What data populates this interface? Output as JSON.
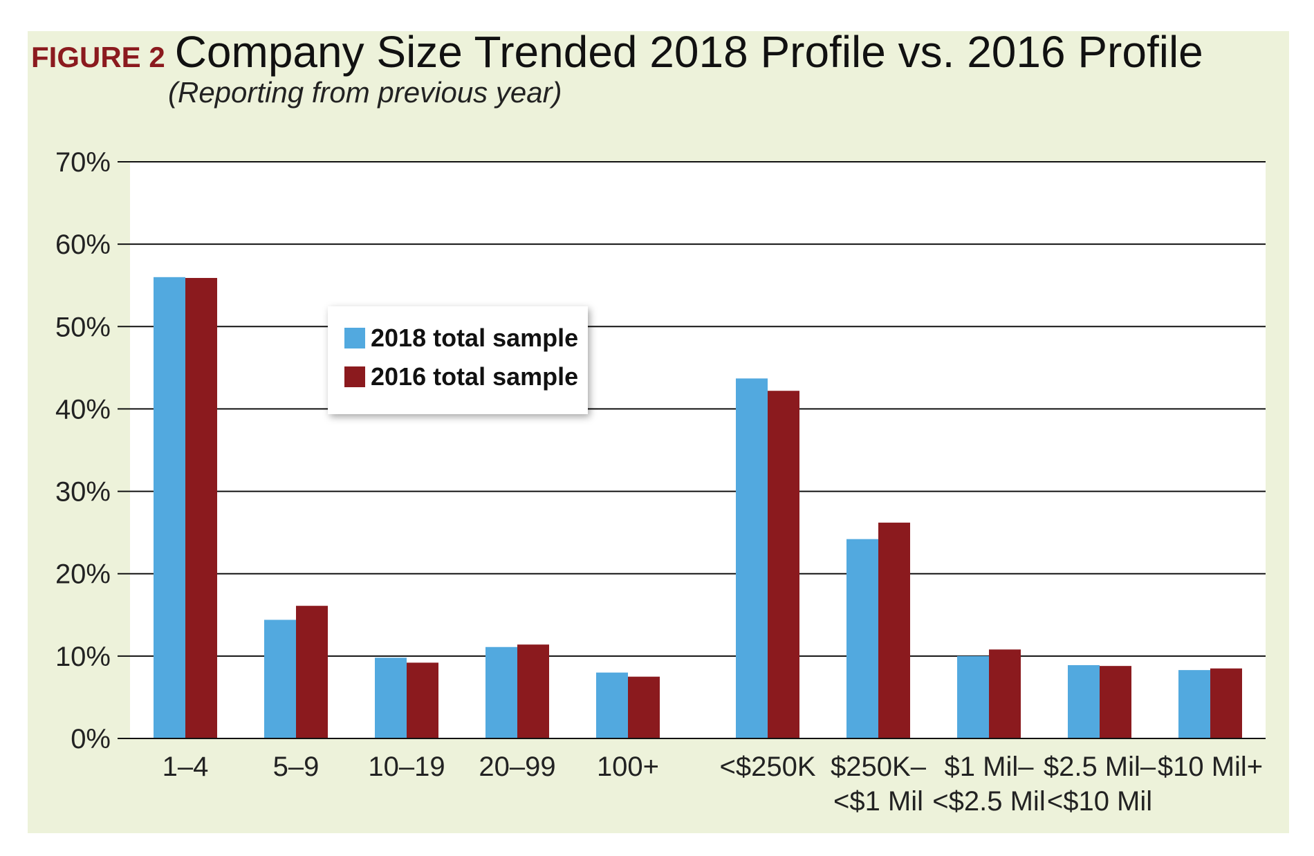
{
  "figure_label": "FIGURE 2",
  "colors": {
    "background": "#edf2da",
    "series_2018": "#52a9df",
    "series_2016": "#8b1a1e",
    "label": "#8b1a1e"
  },
  "chart_data": {
    "type": "bar",
    "title": "Company Size Trended 2018 Profile vs. 2016 Profile",
    "subtitle": "(Reporting from previous year)",
    "xlabel": "",
    "ylabel": "",
    "ylim": [
      0,
      70
    ],
    "yticks": [
      "0%",
      "10%",
      "20%",
      "30%",
      "40%",
      "50%",
      "60%",
      "70%"
    ],
    "grid": true,
    "legend_position": "upper-left-center",
    "categories": [
      [
        "1–4"
      ],
      [
        "5–9"
      ],
      [
        "10–19"
      ],
      [
        "20–99"
      ],
      [
        "100+"
      ],
      [
        "<$250K"
      ],
      [
        "$250K–",
        "<$1 Mil"
      ],
      [
        "$1 Mil–",
        "<$2.5 Mil"
      ],
      [
        "$2.5 Mil–",
        "<$10 Mil"
      ],
      [
        "$10 Mil+"
      ]
    ],
    "series": [
      {
        "name": "2018 total sample",
        "values": [
          56,
          14.4,
          9.8,
          11.1,
          8.0,
          43.7,
          24.2,
          10.0,
          8.9,
          8.3
        ]
      },
      {
        "name": "2016 total sample",
        "values": [
          55.9,
          16.1,
          9.2,
          11.4,
          7.5,
          42.2,
          26.2,
          10.8,
          8.8,
          8.5
        ]
      }
    ]
  }
}
